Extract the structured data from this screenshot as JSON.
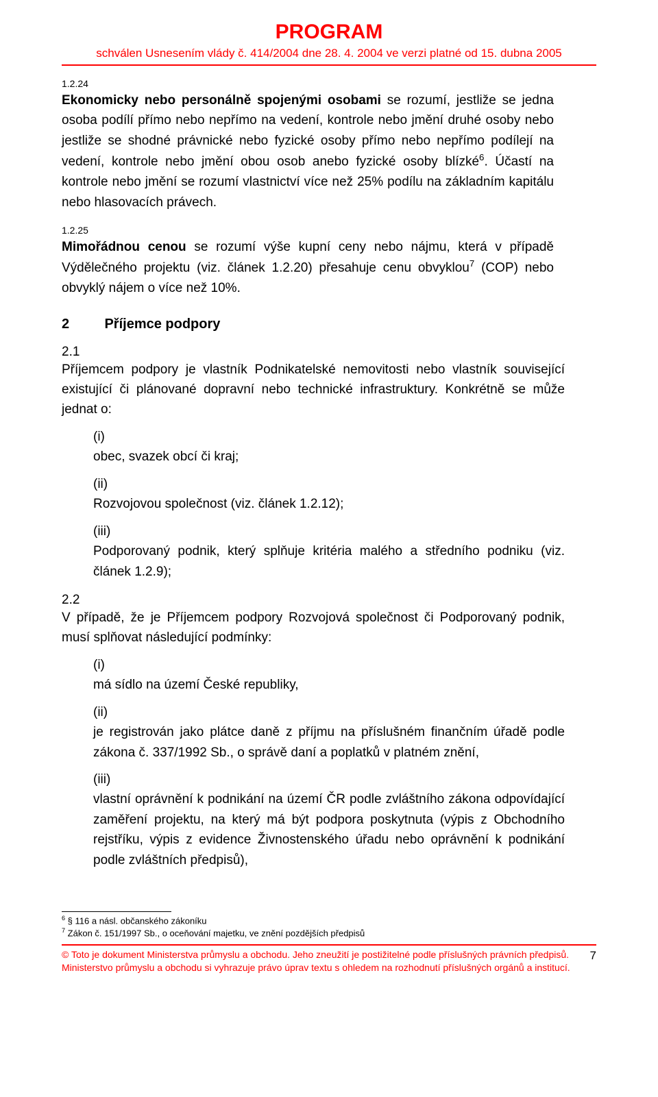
{
  "header": {
    "title": "PROGRAM",
    "subtitle": "schválen Usnesením vlády č. 414/2004 dne 28. 4. 2004 ve verzi platné  od 15. dubna 2005"
  },
  "para_1_2_24": {
    "num": "1.2.24",
    "text_1": "Ekonomicky nebo personálně spojenými osobami",
    "text_2": " se rozumí, jestliže se jedna osoba podílí přímo nebo nepřímo na vedení, kontrole nebo jmění druhé osoby nebo jestliže se shodné právnické nebo fyzické osoby přímo nebo nepřímo podílejí na vedení, kontrole nebo jmění obou osob anebo fyzické osoby blízké",
    "sup_6": "6",
    "text_3": ". Účastí na kontrole nebo jmění se rozumí vlastnictví více než 25% podílu na základním kapitálu nebo hlasovacích právech."
  },
  "para_1_2_25": {
    "num": "1.2.25",
    "text_1": "Mimořádnou cenou",
    "text_2": " se rozumí výše kupní ceny nebo nájmu, která v případě Výdělečného projektu (viz. článek 1.2.20) přesahuje cenu obvyklou",
    "sup_7": "7",
    "text_3": " (COP) nebo obvyklý nájem o více než 10%."
  },
  "heading_2": {
    "num": "2",
    "text": "Příjemce podpory"
  },
  "para_2_1": {
    "num": "2.1",
    "intro": "Příjemcem podpory je vlastník Podnikatelské nemovitosti nebo vlastník související existující či plánované dopravní nebo technické infrastruktury. Konkrétně se může jednat o:",
    "items": [
      {
        "roman": "(i)",
        "text": "obec, svazek obcí či kraj;"
      },
      {
        "roman": "(ii)",
        "text": "Rozvojovou společnost (viz. článek 1.2.12);"
      },
      {
        "roman": "(iii)",
        "text": "Podporovaný podnik, který splňuje kritéria malého a středního podniku (viz. článek 1.2.9);"
      }
    ]
  },
  "para_2_2": {
    "num": "2.2",
    "intro": "V případě, že je Příjemcem podpory Rozvojová společnost či Podporovaný podnik, musí splňovat následující podmínky:",
    "items": [
      {
        "roman": "(i)",
        "text": "má sídlo na území České republiky,"
      },
      {
        "roman": "(ii)",
        "text": "je registrován jako plátce daně z příjmu na příslušném finančním úřadě podle zákona č. 337/1992 Sb., o správě daní a poplatků v platném znění,"
      },
      {
        "roman": "(iii)",
        "text": "vlastní oprávnění k podnikání na území ČR podle zvláštního zákona odpovídající zaměření projektu, na který má být podpora poskytnuta (výpis z Obchodního rejstříku, výpis z evidence Živnostenského úřadu nebo oprávnění k podnikání podle zvláštních předpisů),"
      }
    ]
  },
  "footnotes": {
    "fn6": {
      "sup": "6",
      "text": " § 116 a násl. občanského zákoníku"
    },
    "fn7": {
      "sup": "7",
      "text": " Zákon č. 151/1997 Sb., o oceňování majetku, ve znění pozdějších předpisů"
    }
  },
  "bottom": {
    "line1": "©  Toto je dokument Ministerstva průmyslu a obchodu. Jeho zneužití je postižitelné podle příslušných právních předpisů.",
    "line2": "Ministerstvo průmyslu a obchodu si vyhrazuje právo úprav textu s ohledem na rozhodnutí příslušných orgánů a institucí.",
    "page": "7"
  }
}
